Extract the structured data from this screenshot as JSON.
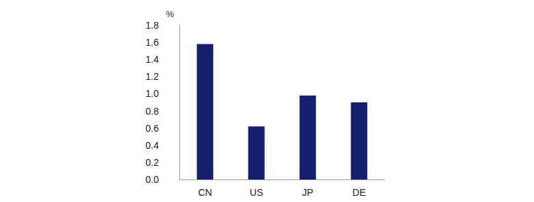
{
  "chart_data": {
    "type": "bar",
    "ylabel": "%",
    "categories": [
      "CN",
      "US",
      "JP",
      "DE"
    ],
    "values": [
      1.58,
      0.62,
      0.98,
      0.9
    ],
    "color": "#14206e",
    "ylim": [
      0,
      1.8
    ],
    "yticks": [
      {
        "value": 0,
        "label": "0.0"
      },
      0.2,
      0.4,
      0.6,
      0.8,
      {
        "value": 1,
        "label": "1.0"
      },
      1.2,
      1.4,
      1.6,
      1.8
    ],
    "grid": false
  }
}
